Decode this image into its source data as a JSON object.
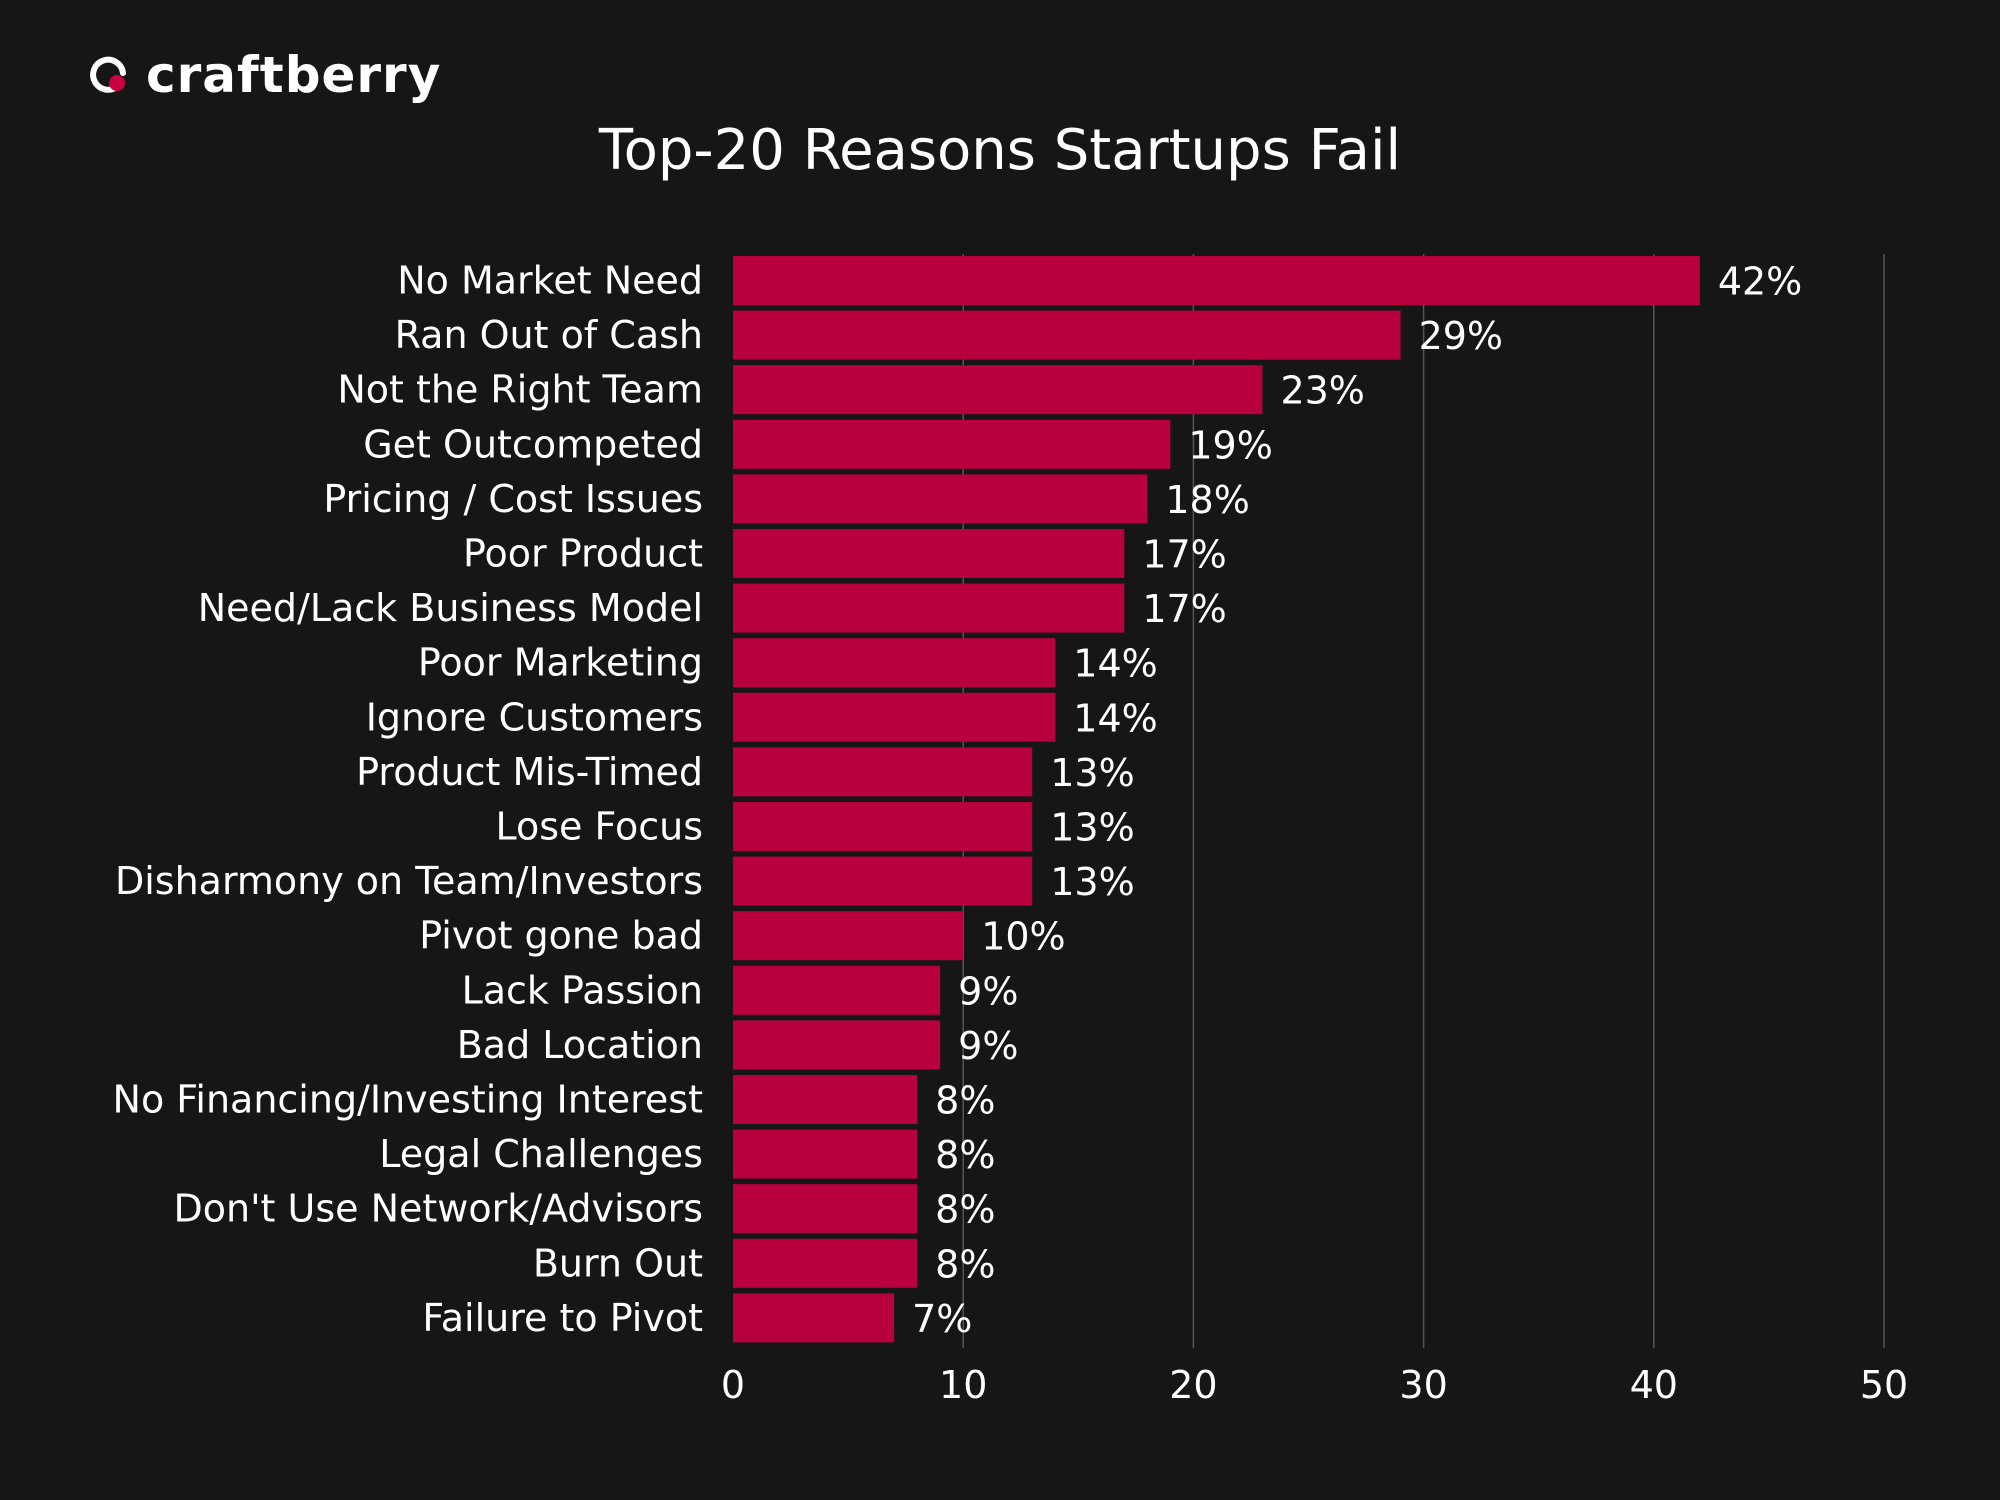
{
  "brand": {
    "name": "craftberry"
  },
  "colors": {
    "background": "#161616",
    "bar": "#b8003f",
    "grid": "#555555",
    "text": "#ffffff"
  },
  "chart_data": {
    "type": "bar",
    "orientation": "horizontal",
    "title": "Top-20 Reasons Startups Fail",
    "xlabel": "",
    "ylabel": "",
    "xlim": [
      0,
      50
    ],
    "xticks": [
      0,
      10,
      20,
      30,
      40,
      50
    ],
    "grid": "vertical",
    "categories": [
      "No Market Need",
      "Ran Out of Cash",
      "Not the Right Team",
      "Get Outcompeted",
      "Pricing / Cost Issues",
      "Poor Product",
      "Need/Lack Business Model",
      "Poor Marketing",
      "Ignore Customers",
      "Product Mis-Timed",
      "Lose Focus",
      "Disharmony on Team/Investors",
      "Pivot gone bad",
      "Lack Passion",
      "Bad Location",
      "No Financing/Investing Interest",
      "Legal Challenges",
      "Don't Use Network/Advisors",
      "Burn Out",
      "Failure to Pivot"
    ],
    "values": [
      42,
      29,
      23,
      19,
      18,
      17,
      17,
      14,
      14,
      13,
      13,
      13,
      10,
      9,
      9,
      8,
      8,
      8,
      8,
      7
    ],
    "data_labels": [
      "42%",
      "29%",
      "23%",
      "19%",
      "18%",
      "17%",
      "17%",
      "14%",
      "14%",
      "13%",
      "13%",
      "13%",
      "10%",
      "9%",
      "9%",
      "8%",
      "8%",
      "8%",
      "8%",
      "7%"
    ]
  }
}
